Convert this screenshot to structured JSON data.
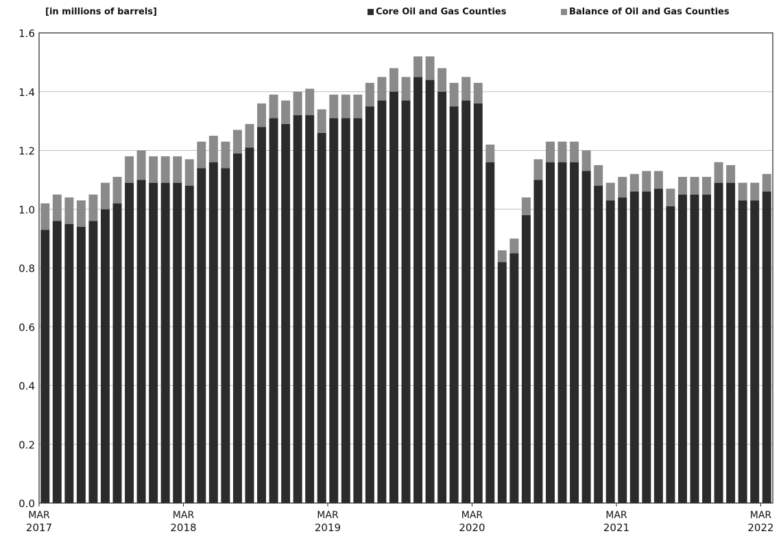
{
  "units_label": "[in millions of barrels]",
  "legend": [
    {
      "label": "Core Oil and Gas Counties",
      "color": "#2b2b2b"
    },
    {
      "label": "Balance of Oil and Gas Counties",
      "color": "#8a8a8a"
    }
  ],
  "chart_data": {
    "type": "bar",
    "stacked": true,
    "ylim": [
      0,
      1.6
    ],
    "yticks": [
      "0.0",
      "0.2",
      "0.4",
      "0.6",
      "0.8",
      "1.0",
      "1.2",
      "1.4",
      "1.6"
    ],
    "grid": true,
    "x_labels": [
      {
        "index": 0,
        "month": "MAR",
        "year": "2017"
      },
      {
        "index": 12,
        "month": "MAR",
        "year": "2018"
      },
      {
        "index": 24,
        "month": "MAR",
        "year": "2019"
      },
      {
        "index": 36,
        "month": "MAR",
        "year": "2020"
      },
      {
        "index": 48,
        "month": "MAR",
        "year": "2021"
      },
      {
        "index": 60,
        "month": "MAR",
        "year": "2022"
      }
    ],
    "series": [
      {
        "name": "Core Oil and Gas Counties",
        "color": "#2b2b2b",
        "values": [
          0.93,
          0.96,
          0.95,
          0.94,
          0.96,
          1.0,
          1.02,
          1.09,
          1.1,
          1.09,
          1.09,
          1.09,
          1.08,
          1.14,
          1.16,
          1.14,
          1.19,
          1.21,
          1.28,
          1.31,
          1.29,
          1.32,
          1.32,
          1.26,
          1.31,
          1.31,
          1.31,
          1.35,
          1.37,
          1.4,
          1.37,
          1.45,
          1.44,
          1.4,
          1.35,
          1.37,
          1.36,
          1.16,
          0.82,
          0.85,
          0.98,
          1.1,
          1.16,
          1.16,
          1.16,
          1.13,
          1.08,
          1.03,
          1.04,
          1.06,
          1.06,
          1.07,
          1.01,
          1.05,
          1.05,
          1.05,
          1.09,
          1.09,
          1.03,
          1.03,
          1.06
        ]
      },
      {
        "name": "Balance of Oil and Gas Counties",
        "color": "#8a8a8a",
        "values": [
          0.09,
          0.09,
          0.09,
          0.09,
          0.09,
          0.09,
          0.09,
          0.09,
          0.1,
          0.09,
          0.09,
          0.09,
          0.09,
          0.09,
          0.09,
          0.09,
          0.08,
          0.08,
          0.08,
          0.08,
          0.08,
          0.08,
          0.09,
          0.08,
          0.08,
          0.08,
          0.08,
          0.08,
          0.08,
          0.08,
          0.08,
          0.07,
          0.08,
          0.08,
          0.08,
          0.08,
          0.07,
          0.06,
          0.04,
          0.05,
          0.06,
          0.07,
          0.07,
          0.07,
          0.07,
          0.07,
          0.07,
          0.06,
          0.07,
          0.06,
          0.07,
          0.06,
          0.06,
          0.06,
          0.06,
          0.06,
          0.07,
          0.06,
          0.06,
          0.06,
          0.06
        ]
      }
    ]
  }
}
